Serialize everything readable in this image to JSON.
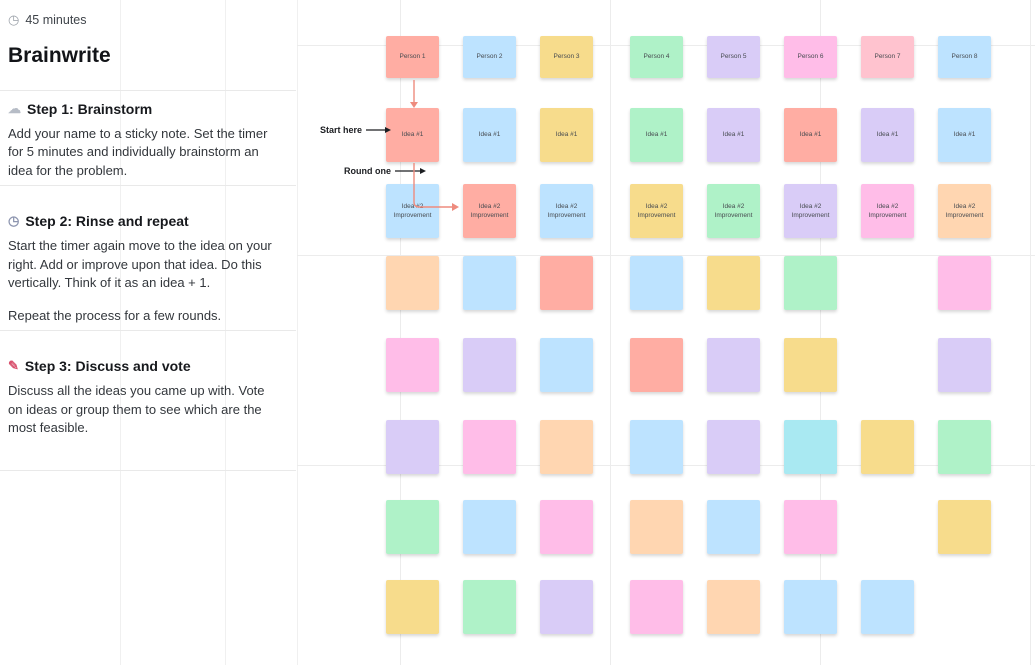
{
  "panel": {
    "duration": "45 minutes",
    "duration_icon": "◷",
    "title": "Brainwrite",
    "steps": [
      {
        "icon": "☁",
        "heading": "Step 1: Brainstorm",
        "body": "Add your name to a sticky note. Set the timer for 5 minutes and individually brainstorm an idea for the problem."
      },
      {
        "icon": "◷",
        "heading": "Step 2: Rinse and repeat",
        "body": "Start the timer again move to the idea on your right. Add or improve upon that idea. Do this vertically. Think of it as an idea + 1.",
        "body2": "Repeat the process for a few rounds."
      },
      {
        "icon": "✎",
        "heading": "Step 3: Discuss and vote",
        "body": "Discuss all the ideas you came up with. Vote on ideas or group them to see which are the most feasible."
      }
    ]
  },
  "canvas": {
    "labels": {
      "start_here": "Start here",
      "round_one": "Round one"
    },
    "arrow_color": "#ee8b7e",
    "palette": {
      "red": "#FFADA3",
      "blue": "#BDE3FF",
      "yellow": "#F7DC8C",
      "green": "#AFF2C8",
      "violet": "#D9CCF7",
      "pink": "#FFBDE8",
      "peach": "#FFD6B1",
      "rose": "#FFC3CF",
      "cyan": "#A9E9F2"
    },
    "notes": [
      {
        "row": 0,
        "col": 0,
        "color": "red",
        "label": "Person 1"
      },
      {
        "row": 0,
        "col": 1,
        "color": "blue",
        "label": "Person 2"
      },
      {
        "row": 0,
        "col": 2,
        "color": "yellow",
        "label": "Person 3"
      },
      {
        "row": 0,
        "col": 3,
        "color": "green",
        "label": "Person 4"
      },
      {
        "row": 0,
        "col": 4,
        "color": "violet",
        "label": "Person 5"
      },
      {
        "row": 0,
        "col": 5,
        "color": "pink",
        "label": "Person 6"
      },
      {
        "row": 0,
        "col": 6,
        "color": "rose",
        "label": "Person 7"
      },
      {
        "row": 0,
        "col": 7,
        "color": "blue",
        "label": "Person 8"
      },
      {
        "row": 1,
        "col": 0,
        "color": "red",
        "label": "Idea #1"
      },
      {
        "row": 1,
        "col": 1,
        "color": "blue",
        "label": "Idea #1"
      },
      {
        "row": 1,
        "col": 2,
        "color": "yellow",
        "label": "Idea #1"
      },
      {
        "row": 1,
        "col": 3,
        "color": "green",
        "label": "Idea #1"
      },
      {
        "row": 1,
        "col": 4,
        "color": "violet",
        "label": "Idea #1"
      },
      {
        "row": 1,
        "col": 5,
        "color": "red",
        "label": "Idea #1"
      },
      {
        "row": 1,
        "col": 6,
        "color": "violet",
        "label": "Idea #1"
      },
      {
        "row": 1,
        "col": 7,
        "color": "blue",
        "label": "Idea #1"
      },
      {
        "row": 2,
        "col": 0,
        "color": "blue",
        "label": "Idea #2\nImprovement"
      },
      {
        "row": 2,
        "col": 1,
        "color": "red",
        "label": "Idea #2\nImprovement"
      },
      {
        "row": 2,
        "col": 2,
        "color": "blue",
        "label": "Idea #2\nImprovement"
      },
      {
        "row": 2,
        "col": 3,
        "color": "yellow",
        "label": "Idea #2\nImprovement"
      },
      {
        "row": 2,
        "col": 4,
        "color": "green",
        "label": "Idea #2\nImprovement"
      },
      {
        "row": 2,
        "col": 5,
        "color": "violet",
        "label": "Idea #2\nImprovement"
      },
      {
        "row": 2,
        "col": 6,
        "color": "pink",
        "label": "Idea #2\nImprovement"
      },
      {
        "row": 2,
        "col": 7,
        "color": "peach",
        "label": "Idea #2\nImprovement"
      },
      {
        "row": 3,
        "col": 0,
        "color": "peach",
        "label": ""
      },
      {
        "row": 3,
        "col": 1,
        "color": "blue",
        "label": ""
      },
      {
        "row": 3,
        "col": 2,
        "color": "red",
        "label": ""
      },
      {
        "row": 3,
        "col": 3,
        "color": "blue",
        "label": ""
      },
      {
        "row": 3,
        "col": 4,
        "color": "yellow",
        "label": ""
      },
      {
        "row": 3,
        "col": 5,
        "color": "green",
        "label": ""
      },
      {
        "row": 3,
        "col": 7,
        "color": "pink",
        "label": ""
      },
      {
        "row": 4,
        "col": 0,
        "color": "pink",
        "label": ""
      },
      {
        "row": 4,
        "col": 1,
        "color": "violet",
        "label": ""
      },
      {
        "row": 4,
        "col": 2,
        "color": "blue",
        "label": ""
      },
      {
        "row": 4,
        "col": 3,
        "color": "red",
        "label": ""
      },
      {
        "row": 4,
        "col": 4,
        "color": "violet",
        "label": ""
      },
      {
        "row": 4,
        "col": 5,
        "color": "yellow",
        "label": ""
      },
      {
        "row": 4,
        "col": 7,
        "color": "violet",
        "label": ""
      },
      {
        "row": 5,
        "col": 0,
        "color": "violet",
        "label": ""
      },
      {
        "row": 5,
        "col": 1,
        "color": "pink",
        "label": ""
      },
      {
        "row": 5,
        "col": 2,
        "color": "peach",
        "label": ""
      },
      {
        "row": 5,
        "col": 3,
        "color": "blue",
        "label": ""
      },
      {
        "row": 5,
        "col": 4,
        "color": "violet",
        "label": ""
      },
      {
        "row": 5,
        "col": 5,
        "color": "cyan",
        "label": ""
      },
      {
        "row": 5,
        "col": 6,
        "color": "yellow",
        "label": ""
      },
      {
        "row": 5,
        "col": 7,
        "color": "green",
        "label": ""
      },
      {
        "row": 6,
        "col": 0,
        "color": "green",
        "label": ""
      },
      {
        "row": 6,
        "col": 1,
        "color": "blue",
        "label": ""
      },
      {
        "row": 6,
        "col": 2,
        "color": "pink",
        "label": ""
      },
      {
        "row": 6,
        "col": 3,
        "color": "peach",
        "label": ""
      },
      {
        "row": 6,
        "col": 4,
        "color": "blue",
        "label": ""
      },
      {
        "row": 6,
        "col": 5,
        "color": "pink",
        "label": ""
      },
      {
        "row": 6,
        "col": 7,
        "color": "yellow",
        "label": ""
      },
      {
        "row": 7,
        "col": 0,
        "color": "yellow",
        "label": ""
      },
      {
        "row": 7,
        "col": 1,
        "color": "green",
        "label": ""
      },
      {
        "row": 7,
        "col": 2,
        "color": "violet",
        "label": ""
      },
      {
        "row": 7,
        "col": 3,
        "color": "pink",
        "label": ""
      },
      {
        "row": 7,
        "col": 4,
        "color": "peach",
        "label": ""
      },
      {
        "row": 7,
        "col": 5,
        "color": "blue",
        "label": ""
      },
      {
        "row": 7,
        "col": 6,
        "color": "blue",
        "label": ""
      }
    ]
  }
}
